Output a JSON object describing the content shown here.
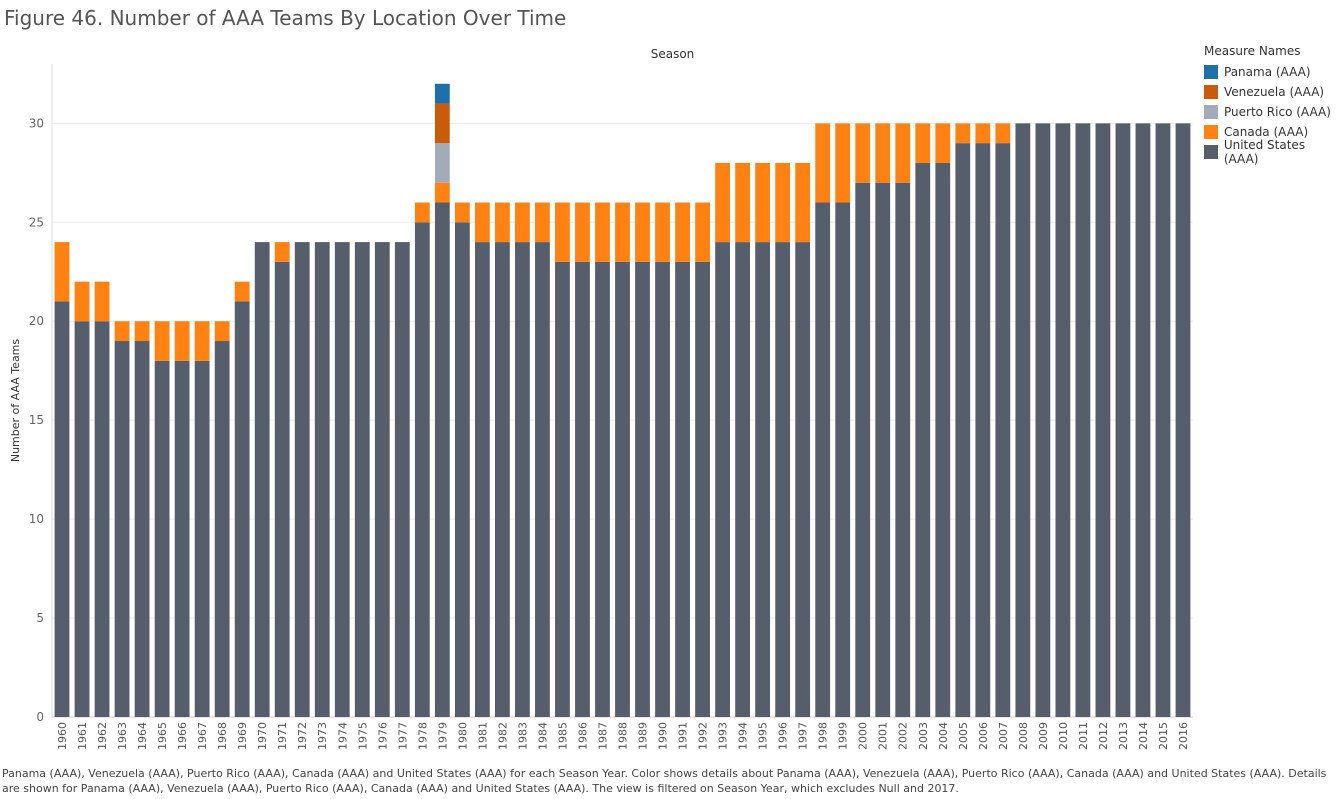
{
  "title": "Figure 46. Number of AAA Teams By Location Over Time",
  "footer": "Panama (AAA), Venezuela (AAA), Puerto Rico (AAA), Canada (AAA) and United States (AAA) for each Season Year.  Color shows details about Panama (AAA), Venezuela (AAA), Puerto Rico (AAA), Canada (AAA) and United States (AAA).  Details are shown for Panama (AAA), Venezuela (AAA), Puerto Rico (AAA), Canada (AAA) and United States (AAA). The view is filtered on Season Year, which excludes Null and 2017.",
  "legend": {
    "title": "Measure Names",
    "items": [
      {
        "label": "Panama (AAA)",
        "color": "#1f6fa8"
      },
      {
        "label": "Venezuela (AAA)",
        "color": "#c95b0c"
      },
      {
        "label": "Puerto Rico (AAA)",
        "color": "#a4abb8"
      },
      {
        "label": "Canada (AAA)",
        "color": "#ff8213"
      },
      {
        "label": "United States (AAA)",
        "color": "#575e6b"
      }
    ]
  },
  "chart_data": {
    "type": "bar",
    "stacked": true,
    "title": "Season",
    "xlabel": "",
    "ylabel": "Number of AAA Teams",
    "ylim": [
      0,
      33
    ],
    "yticks": [
      0,
      5,
      10,
      15,
      20,
      25,
      30
    ],
    "grid": true,
    "categories": [
      "1960",
      "1961",
      "1962",
      "1963",
      "1964",
      "1965",
      "1966",
      "1967",
      "1968",
      "1969",
      "1970",
      "1971",
      "1972",
      "1973",
      "1974",
      "1975",
      "1976",
      "1977",
      "1978",
      "1979",
      "1980",
      "1981",
      "1982",
      "1983",
      "1984",
      "1985",
      "1986",
      "1987",
      "1988",
      "1989",
      "1990",
      "1991",
      "1992",
      "1993",
      "1994",
      "1995",
      "1996",
      "1997",
      "1998",
      "1999",
      "2000",
      "2001",
      "2002",
      "2003",
      "2004",
      "2005",
      "2006",
      "2007",
      "2008",
      "2009",
      "2010",
      "2011",
      "2012",
      "2013",
      "2014",
      "2015",
      "2016"
    ],
    "series": [
      {
        "name": "United States (AAA)",
        "color": "#575e6b",
        "values": [
          21,
          20,
          20,
          19,
          19,
          18,
          18,
          18,
          19,
          21,
          24,
          23,
          24,
          24,
          24,
          24,
          24,
          24,
          25,
          26,
          25,
          24,
          24,
          24,
          24,
          23,
          23,
          23,
          23,
          23,
          23,
          23,
          23,
          24,
          24,
          24,
          24,
          24,
          26,
          26,
          27,
          27,
          27,
          28,
          28,
          29,
          29,
          29,
          30,
          30,
          30,
          30,
          30,
          30,
          30,
          30,
          30
        ]
      },
      {
        "name": "Canada (AAA)",
        "color": "#ff8213",
        "values": [
          3,
          2,
          2,
          1,
          1,
          2,
          2,
          2,
          1,
          1,
          0,
          1,
          0,
          0,
          0,
          0,
          0,
          0,
          1,
          1,
          1,
          2,
          2,
          2,
          2,
          3,
          3,
          3,
          3,
          3,
          3,
          3,
          3,
          4,
          4,
          4,
          4,
          4,
          4,
          4,
          3,
          3,
          3,
          2,
          2,
          1,
          1,
          1,
          0,
          0,
          0,
          0,
          0,
          0,
          0,
          0,
          0
        ]
      },
      {
        "name": "Puerto Rico (AAA)",
        "color": "#a4abb8",
        "values": [
          0,
          0,
          0,
          0,
          0,
          0,
          0,
          0,
          0,
          0,
          0,
          0,
          0,
          0,
          0,
          0,
          0,
          0,
          0,
          2,
          0,
          0,
          0,
          0,
          0,
          0,
          0,
          0,
          0,
          0,
          0,
          0,
          0,
          0,
          0,
          0,
          0,
          0,
          0,
          0,
          0,
          0,
          0,
          0,
          0,
          0,
          0,
          0,
          0,
          0,
          0,
          0,
          0,
          0,
          0,
          0,
          0
        ]
      },
      {
        "name": "Venezuela (AAA)",
        "color": "#c95b0c",
        "values": [
          0,
          0,
          0,
          0,
          0,
          0,
          0,
          0,
          0,
          0,
          0,
          0,
          0,
          0,
          0,
          0,
          0,
          0,
          0,
          2,
          0,
          0,
          0,
          0,
          0,
          0,
          0,
          0,
          0,
          0,
          0,
          0,
          0,
          0,
          0,
          0,
          0,
          0,
          0,
          0,
          0,
          0,
          0,
          0,
          0,
          0,
          0,
          0,
          0,
          0,
          0,
          0,
          0,
          0,
          0,
          0,
          0
        ]
      },
      {
        "name": "Panama (AAA)",
        "color": "#1f6fa8",
        "values": [
          0,
          0,
          0,
          0,
          0,
          0,
          0,
          0,
          0,
          0,
          0,
          0,
          0,
          0,
          0,
          0,
          0,
          0,
          0,
          1,
          0,
          0,
          0,
          0,
          0,
          0,
          0,
          0,
          0,
          0,
          0,
          0,
          0,
          0,
          0,
          0,
          0,
          0,
          0,
          0,
          0,
          0,
          0,
          0,
          0,
          0,
          0,
          0,
          0,
          0,
          0,
          0,
          0,
          0,
          0,
          0,
          0
        ]
      }
    ]
  }
}
